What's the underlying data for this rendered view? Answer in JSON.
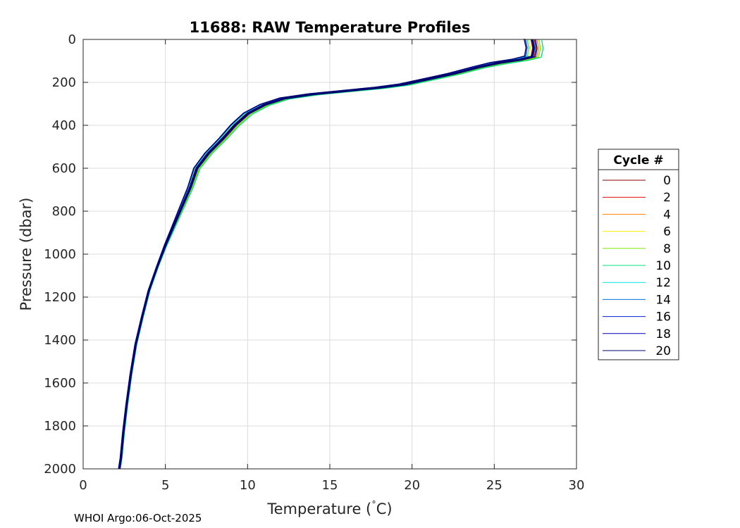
{
  "chart_data": {
    "type": "line",
    "title": "11688: RAW Temperature Profiles",
    "xlabel": "Temperature (",
    "xlabel_unit_degree": "°",
    "xlabel_unit_tail": "C)",
    "ylabel": "Pressure (dbar)",
    "xlim": [
      0,
      30
    ],
    "ylim": [
      0,
      2000
    ],
    "y_reversed": true,
    "grid": true,
    "xticks": [
      0,
      5,
      10,
      15,
      20,
      25,
      30
    ],
    "yticks": [
      0,
      200,
      400,
      600,
      800,
      1000,
      1200,
      1400,
      1600,
      1800,
      2000
    ],
    "legend": {
      "title": "Cycle #",
      "placement": "right-outside",
      "entries": [
        {
          "label": "0",
          "color": "#8b0000"
        },
        {
          "label": "2",
          "color": "#e00000"
        },
        {
          "label": "4",
          "color": "#ff7f00"
        },
        {
          "label": "6",
          "color": "#ffee00"
        },
        {
          "label": "8",
          "color": "#7fe500"
        },
        {
          "label": "10",
          "color": "#00e07a"
        },
        {
          "label": "12",
          "color": "#00e0e0"
        },
        {
          "label": "14",
          "color": "#0070e0"
        },
        {
          "label": "16",
          "color": "#0020d0"
        },
        {
          "label": "18",
          "color": "#0000b0"
        },
        {
          "label": "20",
          "color": "#000070"
        }
      ]
    },
    "base_profile": {
      "temperature": [
        27.3,
        27.4,
        27.3,
        26.5,
        25.2,
        24.0,
        22.5,
        21.0,
        19.5,
        18.0,
        16.0,
        14.0,
        12.2,
        11.0,
        10.0,
        9.2,
        8.5,
        7.6,
        6.9,
        6.5,
        6.0,
        5.5,
        5.0,
        4.5,
        4.0,
        3.6,
        3.2,
        2.9,
        2.65,
        2.45,
        2.3,
        2.2
      ],
      "pressure": [
        0,
        40,
        80,
        95,
        110,
        130,
        160,
        185,
        210,
        225,
        240,
        255,
        275,
        305,
        345,
        400,
        460,
        530,
        600,
        690,
        780,
        870,
        960,
        1060,
        1170,
        1290,
        1420,
        1560,
        1700,
        1830,
        1950,
        2000
      ]
    },
    "cycle_offsets": [
      0.1,
      -0.05,
      0.22,
      -0.15,
      0.3,
      0.42,
      -0.22,
      0.05,
      -0.3,
      0.15,
      -0.35
    ]
  },
  "footer": {
    "text": "WHOI Argo:06-Oct-2025"
  }
}
